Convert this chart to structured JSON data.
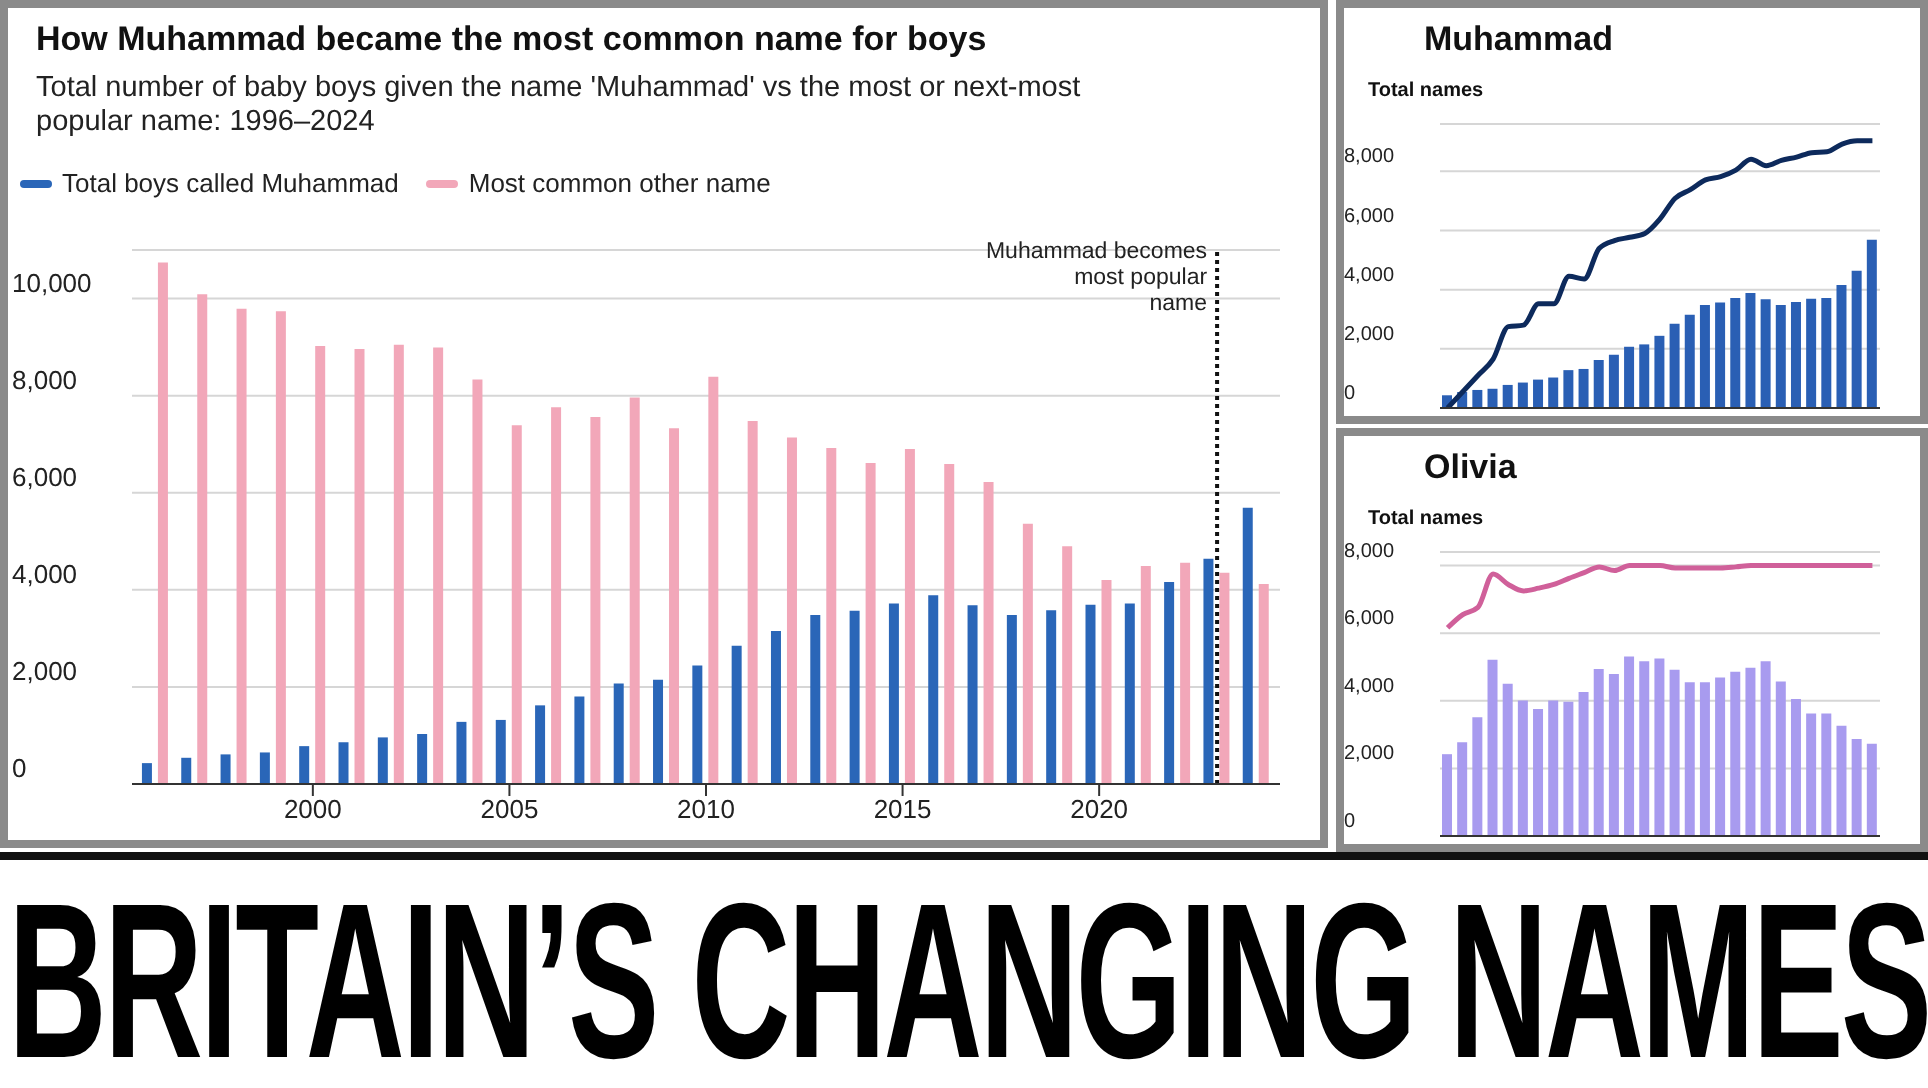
{
  "chart_data": [
    {
      "type": "bar",
      "title": "How Muhammad became the most common name for boys",
      "subtitle": "Total number of baby boys given the name 'Muhammad' vs the most or next-most popular name: 1996–2024",
      "x": [
        1996,
        1997,
        1998,
        1999,
        2000,
        2001,
        2002,
        2003,
        2004,
        2005,
        2006,
        2007,
        2008,
        2009,
        2010,
        2011,
        2012,
        2013,
        2014,
        2015,
        2016,
        2017,
        2018,
        2019,
        2020,
        2021,
        2022,
        2023,
        2024
      ],
      "series": [
        {
          "name": "Total boys called Muhammad",
          "color": "#2a66b8",
          "values": [
            430,
            540,
            610,
            650,
            780,
            860,
            960,
            1030,
            1280,
            1320,
            1620,
            1800,
            2070,
            2150,
            2440,
            2850,
            3150,
            3480,
            3570,
            3720,
            3890,
            3680,
            3480,
            3580,
            3690,
            3720,
            4160,
            4640,
            5690
          ]
        },
        {
          "name": "Most common other name",
          "color": "#f2a7b9",
          "values": [
            10740,
            10090,
            9790,
            9740,
            9020,
            8960,
            9050,
            8990,
            8330,
            7390,
            7760,
            7560,
            7960,
            7330,
            8390,
            7480,
            7140,
            6920,
            6610,
            6900,
            6590,
            6220,
            5360,
            4900,
            4200,
            4490,
            4560,
            4350,
            4120
          ]
        }
      ],
      "xlim": [
        1995.4,
        2024.6
      ],
      "xticks": [
        2000,
        2005,
        2010,
        2015,
        2020
      ],
      "ylim": [
        0,
        11000
      ],
      "yticks": [
        {
          "value": 0,
          "label": "0"
        },
        {
          "value": 2000,
          "label": "2,000"
        },
        {
          "value": 4000,
          "label": "4,000"
        },
        {
          "value": 6000,
          "label": "6,000"
        },
        {
          "value": 8000,
          "label": "8,000"
        },
        {
          "value": 10000,
          "label": "10,000"
        }
      ],
      "grid": "y",
      "legend": "top left",
      "ref_lines": [
        {
          "axis": "x",
          "value": 2023,
          "label": "Muhammad becomes most popular name",
          "color": "#111111",
          "line_style": "dotted"
        }
      ]
    },
    {
      "type": "bar",
      "title": "Muhammad",
      "ylabel": "Total names",
      "categories": [
        null,
        null,
        null,
        null,
        null,
        null,
        null,
        null,
        null,
        null,
        null,
        null,
        null,
        null,
        null,
        null,
        null,
        null,
        null,
        null,
        null,
        null,
        null,
        null,
        null,
        null,
        null,
        null,
        null
      ],
      "series": [
        {
          "color": "#2a5fb4",
          "values": [
            430,
            540,
            610,
            650,
            780,
            860,
            960,
            1030,
            1280,
            1320,
            1620,
            1800,
            2070,
            2150,
            2440,
            2850,
            3150,
            3480,
            3570,
            3720,
            3890,
            3680,
            3480,
            3580,
            3690,
            3720,
            4160,
            4640,
            5690
          ]
        },
        {
          "type": "line",
          "color": "#0d2a5c",
          "values": [
            0,
            550,
            1100,
            1650,
            2750,
            2800,
            3520,
            3520,
            4450,
            4360,
            5400,
            5660,
            5770,
            5900,
            6390,
            7090,
            7380,
            7710,
            7820,
            8040,
            8410,
            8190,
            8370,
            8480,
            8630,
            8660,
            8920,
            9030,
            9030
          ]
        }
      ],
      "ylim": [
        0,
        9600
      ],
      "yticks": [
        {
          "value": 0,
          "label": "0"
        },
        {
          "value": 2000,
          "label": "2,000"
        },
        {
          "value": 4000,
          "label": "4,000"
        },
        {
          "value": 6000,
          "label": "6,000"
        },
        {
          "value": 8000,
          "label": "8,000"
        }
      ],
      "grid": "y",
      "tick_labels": "y"
    },
    {
      "type": "bar",
      "title": "Olivia",
      "ylabel": "Total names",
      "categories": [
        null,
        null,
        null,
        null,
        null,
        null,
        null,
        null,
        null,
        null,
        null,
        null,
        null,
        null,
        null,
        null,
        null,
        null,
        null,
        null,
        null,
        null,
        null,
        null,
        null,
        null,
        null,
        null,
        null
      ],
      "series": [
        {
          "color": "#a89bef",
          "values": [
            2420,
            2770,
            3510,
            5210,
            4500,
            4010,
            3760,
            4010,
            3970,
            4260,
            4940,
            4790,
            5310,
            5170,
            5250,
            4920,
            4550,
            4550,
            4690,
            4860,
            4980,
            5170,
            4570,
            4050,
            3620,
            3620,
            3260,
            2870,
            2730
          ]
        },
        {
          "type": "line",
          "color": "#d0609a",
          "values": [
            6160,
            6550,
            6760,
            7750,
            7440,
            7250,
            7330,
            7440,
            7620,
            7790,
            7960,
            7850,
            8000,
            8000,
            8000,
            7930,
            7930,
            7930,
            7930,
            7960,
            8000,
            8000,
            8000,
            8000,
            8000,
            8000,
            8000,
            8000,
            8000
          ]
        }
      ],
      "ylim": [
        0,
        8400
      ],
      "yticks": [
        {
          "value": 0,
          "label": "0"
        },
        {
          "value": 2000,
          "label": "2,000"
        },
        {
          "value": 4000,
          "label": "4,000"
        },
        {
          "value": 6000,
          "label": "6,000"
        },
        {
          "value": 8000,
          "label": "8,000"
        }
      ],
      "grid": "y",
      "tick_labels": "y"
    },
    {
      "type": "other",
      "title": "BRITAIN’S CHANGING NAMES"
    }
  ]
}
